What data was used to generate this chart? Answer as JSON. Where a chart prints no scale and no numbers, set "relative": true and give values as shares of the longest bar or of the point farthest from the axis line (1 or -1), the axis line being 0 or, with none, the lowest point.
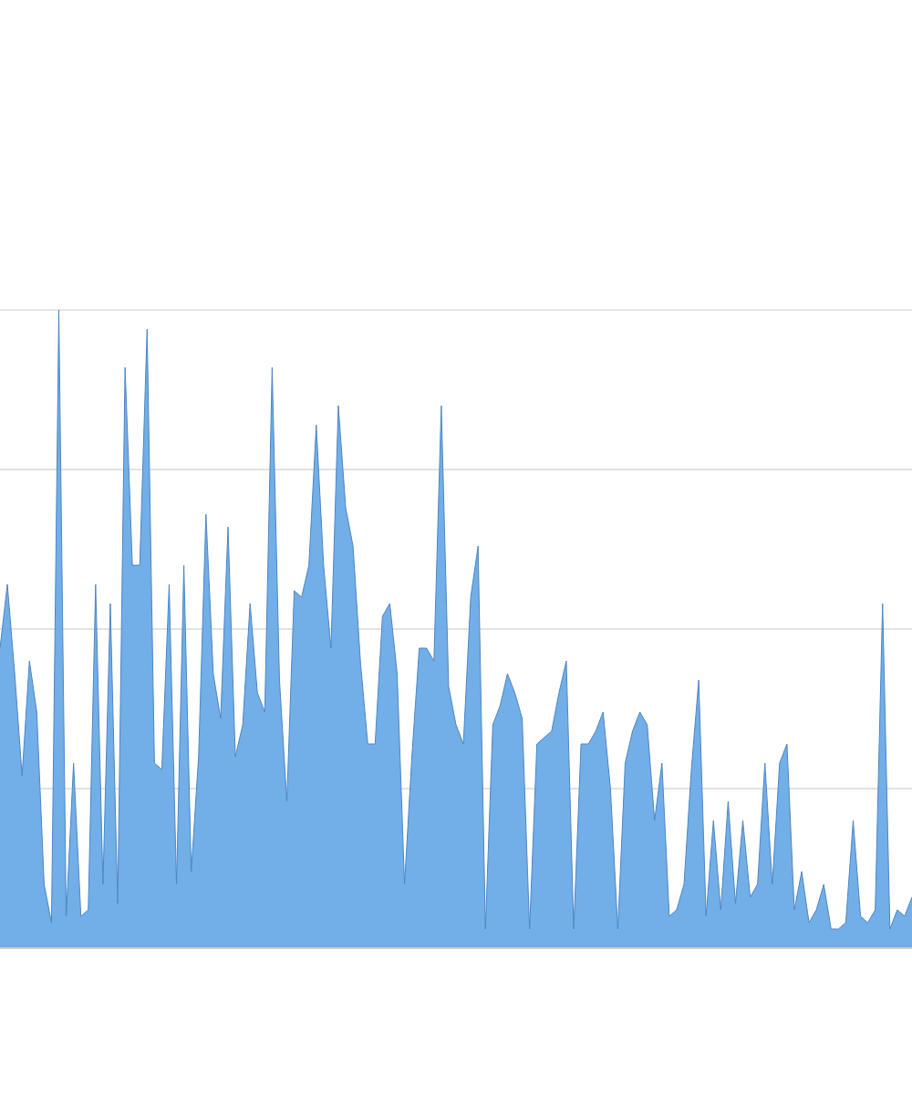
{
  "chart_data": {
    "type": "area",
    "relative": true,
    "grid": "y",
    "color": "#6aaae6",
    "categories": [
      null,
      null,
      null,
      null,
      null,
      null,
      null,
      null,
      null,
      null,
      null,
      null,
      null,
      null,
      null,
      null,
      null,
      null,
      null,
      null,
      null,
      null,
      null,
      null,
      null,
      null,
      null,
      null,
      null,
      null,
      null,
      null,
      null,
      null,
      null,
      null,
      null,
      null,
      null,
      null,
      null,
      null,
      null,
      null,
      null,
      null,
      null,
      null,
      null,
      null,
      null,
      null,
      null,
      null,
      null,
      null,
      null,
      null,
      null,
      null,
      null,
      null,
      null,
      null,
      null,
      null,
      null,
      null,
      null,
      null,
      null,
      null,
      null,
      null,
      null,
      null,
      null,
      null,
      null,
      null,
      null,
      null,
      null,
      null,
      null,
      null,
      null,
      null,
      null,
      null,
      null,
      null,
      null,
      null,
      null,
      null,
      null,
      null,
      null,
      null,
      null,
      null,
      null,
      null,
      null,
      null,
      null,
      null,
      null,
      null,
      null,
      null,
      null,
      null,
      null,
      null,
      null,
      null,
      null,
      null,
      null,
      null,
      null,
      null,
      null
    ],
    "values": [
      0.47,
      0.57,
      0.43,
      0.27,
      0.45,
      0.37,
      0.1,
      0.04,
      1.0,
      0.05,
      0.29,
      0.05,
      0.06,
      0.57,
      0.1,
      0.54,
      0.07,
      0.91,
      0.6,
      0.6,
      0.97,
      0.29,
      0.28,
      0.57,
      0.1,
      0.6,
      0.12,
      0.3,
      0.68,
      0.43,
      0.36,
      0.66,
      0.3,
      0.35,
      0.54,
      0.4,
      0.37,
      0.91,
      0.42,
      0.23,
      0.56,
      0.55,
      0.6,
      0.82,
      0.6,
      0.47,
      0.85,
      0.69,
      0.63,
      0.45,
      0.32,
      0.32,
      0.52,
      0.54,
      0.43,
      0.1,
      0.3,
      0.47,
      0.47,
      0.45,
      0.85,
      0.41,
      0.35,
      0.32,
      0.55,
      0.63,
      0.03,
      0.35,
      0.38,
      0.43,
      0.4,
      0.36,
      0.03,
      0.32,
      0.33,
      0.34,
      0.4,
      0.45,
      0.03,
      0.32,
      0.32,
      0.34,
      0.37,
      0.25,
      0.03,
      0.29,
      0.34,
      0.37,
      0.35,
      0.2,
      0.29,
      0.05,
      0.06,
      0.1,
      0.28,
      0.42,
      0.05,
      0.2,
      0.06,
      0.23,
      0.07,
      0.2,
      0.08,
      0.1,
      0.29,
      0.1,
      0.29,
      0.32,
      0.06,
      0.12,
      0.04,
      0.06,
      0.1,
      0.03,
      0.03,
      0.04,
      0.2,
      0.05,
      0.04,
      0.06,
      0.54,
      0.03,
      0.06,
      0.05,
      0.08
    ]
  }
}
